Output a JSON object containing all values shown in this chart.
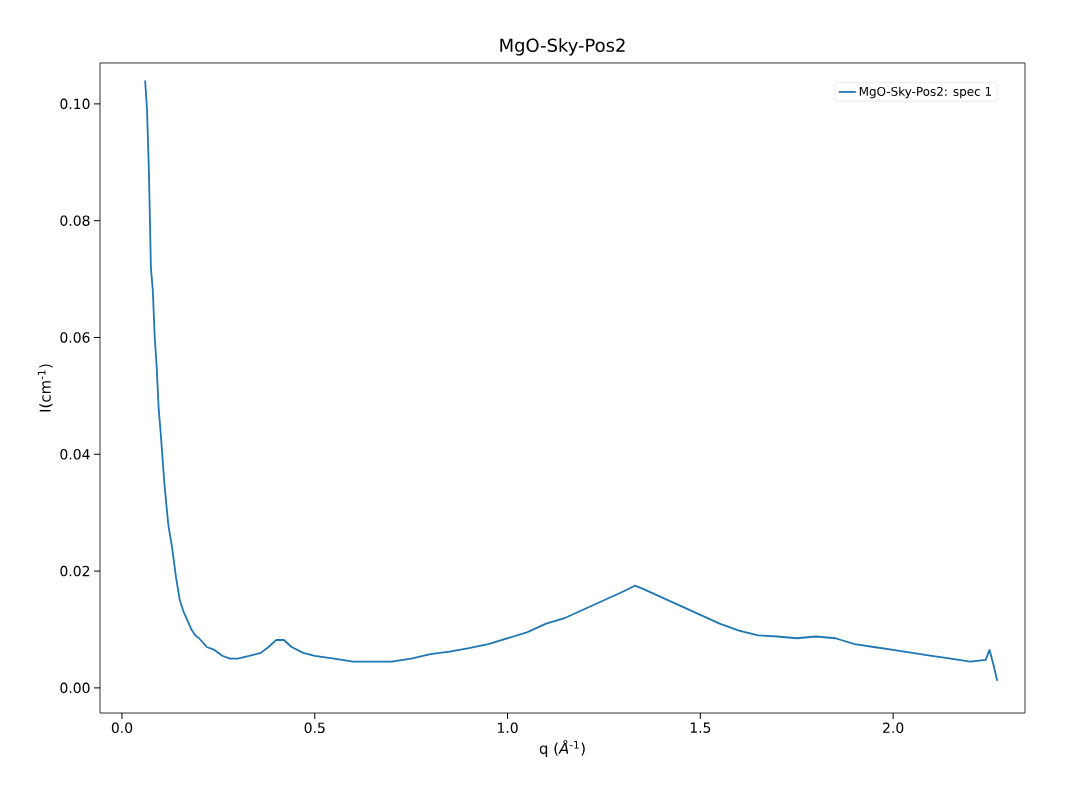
{
  "chart_data": {
    "type": "line",
    "title": "MgO-Sky-Pos2",
    "xlabel": "q (*Å*$^{-1}$)",
    "ylabel": "I(cm$^{-1}$)",
    "xlim": [
      -0.057,
      2.342
    ],
    "ylim": [
      -0.0043,
      0.107
    ],
    "xticks": [
      {
        "value": 0,
        "label": "0.0"
      },
      {
        "value": 0.5,
        "label": "0.5"
      },
      {
        "value": 1,
        "label": "1.0"
      },
      {
        "value": 1.5,
        "label": "1.5"
      },
      {
        "value": 2,
        "label": "2.0"
      }
    ],
    "yticks": [
      {
        "value": 0,
        "label": "0.00"
      },
      {
        "value": 0.02,
        "label": "0.02"
      },
      {
        "value": 0.04,
        "label": "0.04"
      },
      {
        "value": 0.06,
        "label": "0.06"
      },
      {
        "value": 0.08,
        "label": "0.08"
      },
      {
        "value": 0.1,
        "label": "0.10"
      }
    ],
    "grid": false,
    "legend": "top right",
    "marker": "none",
    "line_style": "solid",
    "x": [
      0.06,
      0.065,
      0.07,
      0.075,
      0.08,
      0.085,
      0.09,
      0.095,
      0.1,
      0.11,
      0.12,
      0.13,
      0.14,
      0.15,
      0.16,
      0.17,
      0.18,
      0.19,
      0.2,
      0.22,
      0.24,
      0.26,
      0.28,
      0.3,
      0.33,
      0.36,
      0.38,
      0.4,
      0.42,
      0.44,
      0.47,
      0.5,
      0.55,
      0.6,
      0.65,
      0.7,
      0.75,
      0.8,
      0.85,
      0.9,
      0.95,
      1.0,
      1.05,
      1.1,
      1.15,
      1.2,
      1.25,
      1.3,
      1.33,
      1.35,
      1.4,
      1.45,
      1.5,
      1.55,
      1.6,
      1.65,
      1.7,
      1.75,
      1.8,
      1.85,
      1.9,
      1.95,
      2.0,
      2.05,
      2.1,
      2.15,
      2.2,
      2.24,
      2.25,
      2.26,
      2.27
    ],
    "series": [
      {
        "name": "MgO-Sky-Pos2: spec 1",
        "color": "#1f77b4",
        "values": [
          0.104,
          0.099,
          0.088,
          0.072,
          0.068,
          0.06,
          0.055,
          0.048,
          0.044,
          0.035,
          0.028,
          0.024,
          0.019,
          0.015,
          0.013,
          0.0115,
          0.01,
          0.009,
          0.0085,
          0.007,
          0.0065,
          0.0055,
          0.005,
          0.005,
          0.0055,
          0.006,
          0.007,
          0.0082,
          0.0082,
          0.007,
          0.006,
          0.0055,
          0.005,
          0.0045,
          0.0045,
          0.0045,
          0.005,
          0.0058,
          0.0062,
          0.0068,
          0.0075,
          0.0085,
          0.0095,
          0.011,
          0.012,
          0.0135,
          0.015,
          0.0165,
          0.0175,
          0.017,
          0.0155,
          0.014,
          0.0125,
          0.011,
          0.0098,
          0.009,
          0.0088,
          0.0085,
          0.0088,
          0.0085,
          0.0075,
          0.007,
          0.0065,
          0.006,
          0.0055,
          0.005,
          0.0045,
          0.0048,
          0.0065,
          0.004,
          0.0012
        ]
      }
    ]
  }
}
